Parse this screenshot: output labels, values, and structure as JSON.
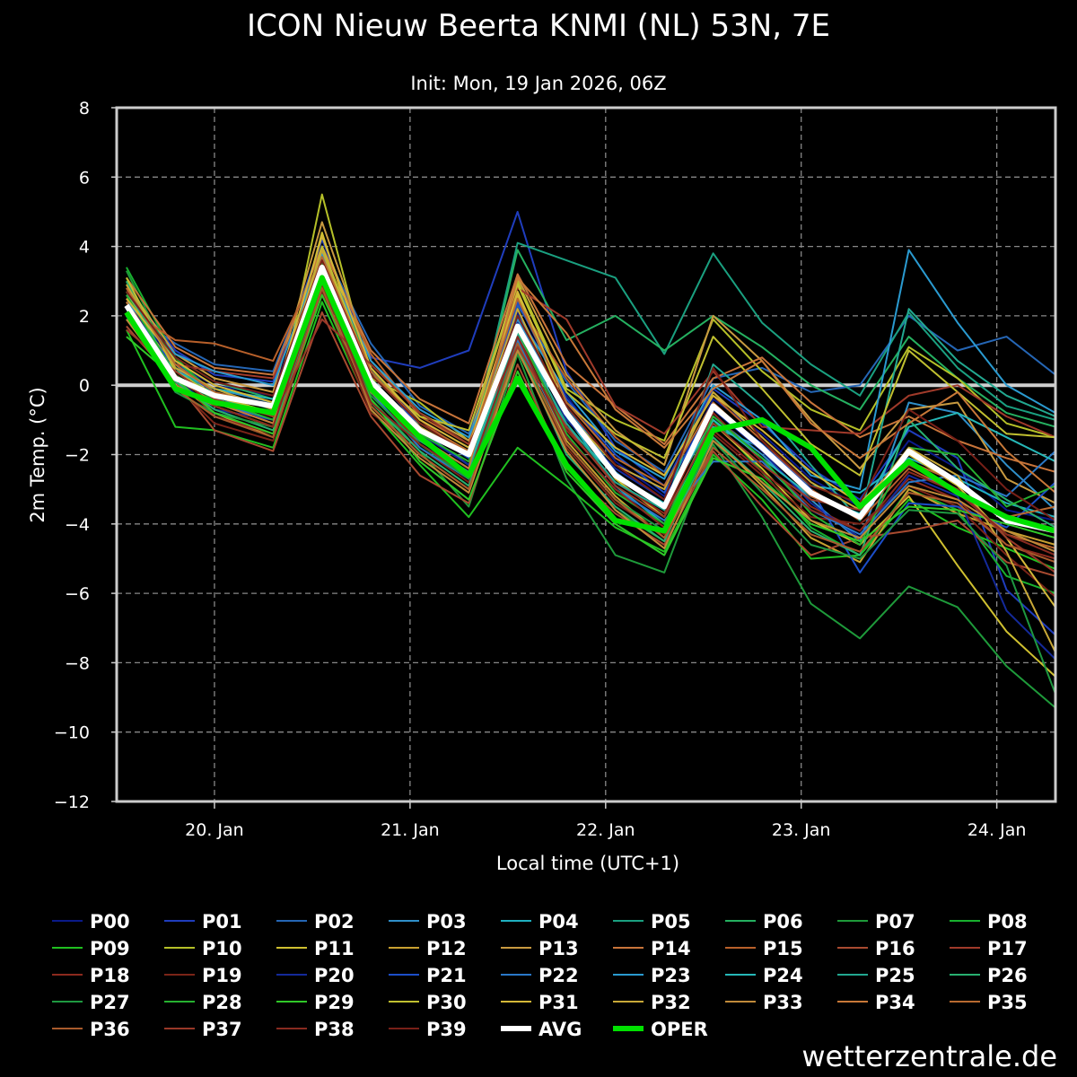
{
  "chart_data": {
    "type": "line",
    "title": "ICON Nieuw Beerta KNMI (NL) 53N, 7E",
    "subtitle": "Init: Mon, 19 Jan 2026, 06Z",
    "xlabel": "Local time (UTC+1)",
    "ylabel": "2m Temp. (°C)",
    "ylim": [
      -12,
      8
    ],
    "yticks": [
      8,
      6,
      4,
      2,
      0,
      -2,
      -4,
      -6,
      -8,
      -10,
      -12
    ],
    "ytick_labels": [
      "8",
      "6",
      "4",
      "2",
      "0",
      "−2",
      "−4",
      "−6",
      "−8",
      "−10",
      "−12"
    ],
    "xlim": [
      -0.5,
      4.3
    ],
    "xticks": [
      0,
      1,
      2,
      3,
      4
    ],
    "xtick_labels": [
      "20. Jan",
      "21. Jan",
      "22. Jan",
      "23. Jan",
      "24. Jan"
    ],
    "x": [
      -0.45,
      -0.2,
      0.0,
      0.3,
      0.55,
      0.8,
      1.05,
      1.3,
      1.55,
      1.8,
      2.05,
      2.3,
      2.55,
      2.8,
      3.05,
      3.3,
      3.55,
      3.8,
      4.05,
      4.3
    ],
    "grid": true,
    "zero_line": true,
    "legend_location": "bottom",
    "avg": {
      "name": "AVG",
      "color": "#ffffff",
      "values": [
        2.3,
        0.2,
        -0.3,
        -0.6,
        3.4,
        0.1,
        -1.3,
        -2.0,
        1.7,
        -0.8,
        -2.6,
        -3.5,
        -0.6,
        -1.8,
        -3.1,
        -3.8,
        -1.9,
        -2.8,
        -3.9,
        -4.2
      ]
    },
    "oper": {
      "name": "OPER",
      "color": "#00e000",
      "values": [
        2.1,
        -0.1,
        -0.5,
        -0.8,
        3.1,
        -0.1,
        -1.5,
        -2.6,
        0.2,
        -2.3,
        -3.9,
        -4.2,
        -1.3,
        -1.0,
        -1.8,
        -3.5,
        -2.2,
        -3.1,
        -3.8,
        -4.2
      ]
    },
    "members": [
      {
        "name": "P00",
        "color": "#0a1a8a",
        "values": [
          2.5,
          0.6,
          0.0,
          -0.3,
          3.9,
          0.4,
          -1.0,
          -1.8,
          2.1,
          -0.3,
          -2.2,
          -3.2,
          -0.4,
          -1.4,
          -2.7,
          -3.5,
          -1.6,
          -2.4,
          -3.6,
          -3.9
        ]
      },
      {
        "name": "P01",
        "color": "#1f3dbd",
        "values": [
          2.8,
          1.0,
          0.3,
          0.1,
          4.2,
          0.8,
          0.5,
          1.0,
          5.0,
          0.4,
          -1.8,
          -2.9,
          -0.1,
          -1.1,
          -2.4,
          -3.3,
          -1.3,
          -2.1,
          -5.9,
          -7.2
        ]
      },
      {
        "name": "P02",
        "color": "#2566b5",
        "values": [
          2.2,
          1.2,
          0.6,
          0.4,
          4.0,
          1.2,
          -0.6,
          -1.4,
          2.3,
          0.1,
          -1.6,
          -2.5,
          0.2,
          0.5,
          -0.2,
          0.0,
          2.0,
          1.0,
          1.4,
          0.3
        ]
      },
      {
        "name": "P03",
        "color": "#2f8fc9",
        "values": [
          1.9,
          0.4,
          -0.1,
          -0.5,
          3.6,
          0.2,
          -1.3,
          -2.3,
          1.9,
          -0.6,
          -2.5,
          -3.6,
          -0.9,
          -2.0,
          -3.3,
          -4.5,
          -0.5,
          -0.8,
          -2.3,
          -3.6
        ]
      },
      {
        "name": "P04",
        "color": "#1fb0c0",
        "values": [
          2.0,
          0.2,
          -0.4,
          -0.8,
          3.3,
          0.0,
          -1.7,
          -2.6,
          1.6,
          -0.9,
          -2.9,
          -4.0,
          -1.2,
          -1.8,
          -2.9,
          -3.1,
          -2.1,
          -2.7,
          -3.4,
          -3.8
        ]
      },
      {
        "name": "P05",
        "color": "#1aa080",
        "values": [
          3.0,
          0.7,
          -0.2,
          -0.7,
          3.5,
          0.3,
          -1.1,
          -2.0,
          4.1,
          3.6,
          3.1,
          0.9,
          3.8,
          1.8,
          0.6,
          -0.3,
          2.1,
          0.5,
          -0.6,
          -1.0
        ]
      },
      {
        "name": "P06",
        "color": "#25b060",
        "values": [
          2.6,
          0.8,
          0.1,
          -0.4,
          3.8,
          0.5,
          -1.2,
          -2.1,
          3.9,
          1.3,
          2.0,
          1.0,
          2.0,
          1.1,
          0.0,
          -0.7,
          1.4,
          0.2,
          -0.8,
          -1.2
        ]
      },
      {
        "name": "P07",
        "color": "#1e9a3a",
        "values": [
          3.3,
          0.5,
          -0.5,
          -1.1,
          3.0,
          -0.4,
          -1.9,
          -3.5,
          0.9,
          -2.7,
          -4.9,
          -5.4,
          -1.7,
          -3.8,
          -6.3,
          -7.3,
          -5.8,
          -6.4,
          -8.1,
          -9.3
        ]
      },
      {
        "name": "P08",
        "color": "#18b02e",
        "values": [
          3.4,
          0.8,
          -0.3,
          -0.9,
          3.2,
          0.1,
          -1.4,
          -2.6,
          1.2,
          -1.9,
          -3.6,
          -4.5,
          -1.0,
          -2.5,
          -4.1,
          -4.9,
          -3.0,
          -3.6,
          -5.5,
          -6.0
        ]
      },
      {
        "name": "P09",
        "color": "#20c020",
        "values": [
          1.6,
          -1.2,
          -1.3,
          -1.8,
          2.4,
          -0.7,
          -2.3,
          -3.8,
          -1.8,
          -2.9,
          -4.1,
          -4.8,
          -2.0,
          -3.3,
          -5.0,
          -4.9,
          -3.3,
          -4.1,
          -4.7,
          -5.3
        ]
      },
      {
        "name": "P10",
        "color": "#b5c028",
        "values": [
          2.7,
          0.3,
          -0.6,
          -1.2,
          5.5,
          0.2,
          -0.5,
          -1.6,
          3.0,
          -0.1,
          -1.0,
          -1.6,
          1.9,
          0.4,
          -0.7,
          -1.3,
          1.1,
          0.2,
          -1.1,
          -1.5
        ]
      },
      {
        "name": "P11",
        "color": "#cfc030",
        "values": [
          2.4,
          0.5,
          -0.3,
          -0.9,
          4.4,
          0.0,
          -1.1,
          -1.9,
          2.6,
          -0.7,
          -2.7,
          -3.8,
          -1.1,
          -2.4,
          -3.9,
          -4.6,
          -3.2,
          -5.2,
          -7.1,
          -8.4
        ]
      },
      {
        "name": "P12",
        "color": "#c8a030",
        "values": [
          2.1,
          0.1,
          -0.8,
          -1.5,
          3.0,
          -0.6,
          -2.0,
          -3.0,
          1.4,
          -1.6,
          -3.2,
          -4.4,
          -1.5,
          -2.9,
          -4.4,
          -5.1,
          -3.0,
          -3.7,
          -4.2,
          -4.6
        ]
      },
      {
        "name": "P13",
        "color": "#c89a40",
        "values": [
          2.9,
          0.9,
          0.2,
          -0.2,
          4.7,
          0.7,
          -0.8,
          -1.6,
          3.1,
          0.3,
          -1.3,
          -2.3,
          2.0,
          0.7,
          -1.0,
          -2.4,
          -0.7,
          -0.5,
          -2.7,
          -3.4
        ]
      },
      {
        "name": "P14",
        "color": "#c8743a",
        "values": [
          3.1,
          1.1,
          0.5,
          0.3,
          4.0,
          1.0,
          -0.4,
          -1.1,
          3.2,
          0.6,
          -0.6,
          -1.7,
          0.2,
          0.8,
          -0.5,
          -1.5,
          -0.9,
          -1.6,
          -2.1,
          -2.5
        ]
      },
      {
        "name": "P15",
        "color": "#b8602a",
        "values": [
          2.2,
          1.3,
          1.2,
          0.7,
          3.7,
          0.9,
          -0.9,
          -1.7,
          2.4,
          0.2,
          -1.5,
          -2.6,
          -0.3,
          -1.6,
          -3.0,
          -3.9,
          -2.4,
          -3.1,
          -4.3,
          -4.7
        ]
      },
      {
        "name": "P16",
        "color": "#a84a30",
        "values": [
          1.7,
          0.1,
          -1.3,
          -1.9,
          2.1,
          -0.9,
          -2.6,
          -3.4,
          0.6,
          -2.4,
          -3.7,
          -4.6,
          -1.9,
          -3.5,
          -4.9,
          -4.4,
          -4.2,
          -3.9,
          -5.1,
          -5.5
        ]
      },
      {
        "name": "P17",
        "color": "#a03a2a",
        "values": [
          2.8,
          0.6,
          0.4,
          0.2,
          3.5,
          0.5,
          -1.0,
          -2.0,
          2.8,
          1.9,
          -0.6,
          -1.4,
          0.4,
          -1.2,
          -1.3,
          -1.4,
          -0.3,
          0.0,
          -0.9,
          -1.5
        ]
      },
      {
        "name": "P18",
        "color": "#8c2a1e",
        "values": [
          2.5,
          0.3,
          -0.9,
          -1.4,
          2.9,
          -0.3,
          -1.6,
          -2.5,
          1.5,
          -1.3,
          -2.8,
          -3.7,
          -0.8,
          -2.2,
          -3.5,
          -4.2,
          -2.7,
          -3.3,
          -4.6,
          -5.0
        ]
      },
      {
        "name": "P19",
        "color": "#7a2418",
        "values": [
          2.0,
          0.0,
          -1.1,
          -1.6,
          2.7,
          -0.8,
          -1.8,
          -2.8,
          1.0,
          -1.8,
          -3.4,
          -4.3,
          -1.4,
          -2.6,
          -3.8,
          -4.0,
          -2.9,
          -3.5,
          -4.9,
          -6.1
        ]
      },
      {
        "name": "P20",
        "color": "#142a9a",
        "values": [
          2.6,
          0.2,
          -0.7,
          -1.0,
          3.9,
          -0.2,
          -1.4,
          -2.3,
          1.8,
          -1.0,
          -2.4,
          -3.3,
          -0.7,
          -1.9,
          -3.4,
          -4.4,
          -2.6,
          -3.2,
          -6.5,
          -7.9
        ]
      },
      {
        "name": "P21",
        "color": "#1c4ec8",
        "values": [
          2.3,
          0.5,
          -0.2,
          -0.6,
          3.6,
          0.4,
          -1.2,
          -2.1,
          2.4,
          -0.4,
          -2.0,
          -3.1,
          -0.6,
          -1.7,
          -3.0,
          -5.4,
          -3.4,
          -3.5,
          -4.1,
          -2.8
        ]
      },
      {
        "name": "P22",
        "color": "#2a78c8",
        "values": [
          2.0,
          -0.1,
          -0.5,
          -1.0,
          3.2,
          -0.2,
          -1.8,
          -2.7,
          1.3,
          -1.5,
          -3.0,
          -3.9,
          -2.2,
          -2.2,
          -3.6,
          -4.3,
          -2.8,
          -2.6,
          -3.2,
          -1.9
        ]
      },
      {
        "name": "P23",
        "color": "#2a9ad0",
        "values": [
          2.4,
          0.9,
          0.4,
          0.0,
          3.8,
          0.7,
          -0.7,
          -1.5,
          2.0,
          -0.2,
          -1.9,
          -2.7,
          0.0,
          -1.0,
          -2.6,
          -3.0,
          3.9,
          1.8,
          0.0,
          -0.8
        ]
      },
      {
        "name": "P24",
        "color": "#26b8b8",
        "values": [
          2.2,
          0.4,
          -0.1,
          -0.4,
          3.3,
          0.1,
          -1.5,
          -2.4,
          1.7,
          -1.2,
          -2.6,
          -3.4,
          -1.0,
          -2.1,
          -3.2,
          -3.7,
          -1.2,
          -0.8,
          -1.5,
          -2.2
        ]
      },
      {
        "name": "P25",
        "color": "#22a890",
        "values": [
          2.7,
          0.6,
          -0.4,
          -0.8,
          3.4,
          0.0,
          -1.6,
          -2.5,
          1.5,
          -1.1,
          -2.8,
          -3.6,
          0.6,
          -0.6,
          -2.3,
          -3.9,
          2.2,
          0.7,
          -0.3,
          -0.9
        ]
      },
      {
        "name": "P26",
        "color": "#28b070",
        "values": [
          3.0,
          0.1,
          -0.7,
          -1.3,
          3.0,
          -0.5,
          -1.9,
          -2.9,
          1.1,
          -2.0,
          -3.5,
          -4.5,
          -1.5,
          -2.8,
          -4.2,
          -4.9,
          -1.0,
          -2.4,
          -3.3,
          -4.1
        ]
      },
      {
        "name": "P27",
        "color": "#1e9840",
        "values": [
          2.3,
          -0.2,
          -0.8,
          -1.2,
          3.1,
          -0.3,
          -1.7,
          -2.7,
          1.2,
          -1.7,
          -3.3,
          -4.2,
          -1.6,
          -3.1,
          -4.6,
          -5.0,
          -3.6,
          -3.7,
          -5.2,
          -8.9
        ]
      },
      {
        "name": "P28",
        "color": "#26b030",
        "values": [
          2.6,
          0.3,
          -0.4,
          -1.0,
          3.5,
          0.2,
          -1.4,
          -2.2,
          1.6,
          -1.4,
          -3.1,
          -4.0,
          -0.9,
          -2.1,
          -3.7,
          -4.6,
          -1.8,
          -2.0,
          -3.5,
          -2.9
        ]
      },
      {
        "name": "P29",
        "color": "#30c828",
        "values": [
          1.4,
          0.2,
          -0.8,
          -1.4,
          2.6,
          -0.4,
          -2.2,
          -3.3,
          0.4,
          -2.5,
          -4.0,
          -4.9,
          -2.1,
          -2.7,
          -4.0,
          -4.5,
          -3.5,
          -3.6,
          -4.0,
          -4.4
        ]
      },
      {
        "name": "P30",
        "color": "#c0c030",
        "values": [
          3.1,
          0.4,
          -0.3,
          -0.8,
          4.0,
          0.3,
          -0.9,
          -1.3,
          2.9,
          -0.2,
          -1.4,
          -2.1,
          1.4,
          -0.1,
          -1.7,
          -2.6,
          1.0,
          -0.2,
          -1.4,
          -1.5
        ]
      },
      {
        "name": "P31",
        "color": "#d4b838",
        "values": [
          2.5,
          0.7,
          0.0,
          -0.5,
          4.3,
          0.5,
          -1.0,
          -1.8,
          2.7,
          -0.5,
          -1.8,
          -2.6,
          -0.3,
          -1.3,
          -2.5,
          -3.4,
          -2.0,
          -2.9,
          -4.4,
          -6.4
        ]
      },
      {
        "name": "P32",
        "color": "#c8a838",
        "values": [
          2.9,
          0.5,
          -0.1,
          -0.7,
          3.9,
          0.1,
          -1.2,
          -2.0,
          2.2,
          -0.8,
          -2.3,
          -3.0,
          -0.2,
          -1.5,
          -2.8,
          -3.6,
          -1.8,
          -2.6,
          -4.8,
          -7.7
        ]
      },
      {
        "name": "P33",
        "color": "#c08a3a",
        "values": [
          1.9,
          0.0,
          -0.6,
          -1.2,
          3.1,
          -0.7,
          -2.1,
          -3.1,
          1.0,
          -1.9,
          -3.6,
          -4.7,
          -1.6,
          -2.8,
          -3.9,
          -4.4,
          -2.9,
          -3.3,
          -4.2,
          -4.8
        ]
      },
      {
        "name": "P34",
        "color": "#c87838",
        "values": [
          2.4,
          0.2,
          -0.5,
          -1.1,
          3.3,
          -0.2,
          -1.5,
          -2.4,
          3.1,
          1.5,
          -0.7,
          -1.8,
          -0.1,
          0.7,
          -1.1,
          -2.1,
          -1.1,
          -0.2,
          -1.9,
          -3.1
        ]
      },
      {
        "name": "P35",
        "color": "#b86a30",
        "values": [
          2.8,
          0.6,
          -0.2,
          -0.6,
          3.7,
          0.4,
          -1.1,
          -1.9,
          2.5,
          -0.5,
          -2.1,
          -2.9,
          -0.5,
          -1.8,
          -3.2,
          -3.8,
          -2.2,
          -2.8,
          -3.8,
          -3.5
        ]
      },
      {
        "name": "P36",
        "color": "#a85a2c",
        "values": [
          2.1,
          -0.1,
          -0.9,
          -1.5,
          2.8,
          -0.6,
          -2.0,
          -3.0,
          1.2,
          -1.7,
          -3.3,
          -4.4,
          -1.8,
          -3.0,
          -4.3,
          -4.8,
          -3.1,
          -3.4,
          -4.6,
          -5.1
        ]
      },
      {
        "name": "P37",
        "color": "#983828",
        "values": [
          1.6,
          0.4,
          -0.4,
          -0.9,
          1.9,
          0.6,
          -0.8,
          -1.7,
          1.1,
          -1.2,
          -2.9,
          -3.8,
          -1.1,
          -2.3,
          -3.3,
          -3.6,
          -2.3,
          -3.0,
          -4.4,
          -5.4
        ]
      },
      {
        "name": "P38",
        "color": "#882a20",
        "values": [
          2.3,
          0.3,
          -0.6,
          -1.2,
          3.0,
          -0.5,
          -1.7,
          -2.6,
          1.4,
          -1.5,
          -3.0,
          -4.1,
          -1.3,
          -2.5,
          -3.6,
          -4.2,
          -2.5,
          -3.1,
          -4.3,
          -4.9
        ]
      },
      {
        "name": "P39",
        "color": "#782018",
        "values": [
          2.7,
          0.8,
          0.1,
          -0.3,
          3.6,
          0.3,
          -1.1,
          -2.0,
          2.0,
          -0.6,
          -2.3,
          -3.3,
          0.5,
          -1.6,
          -2.9,
          -3.4,
          -0.7,
          -1.6,
          -3.0,
          -3.9
        ]
      }
    ]
  },
  "footer": {
    "credit": "wetterzentrale.de"
  }
}
